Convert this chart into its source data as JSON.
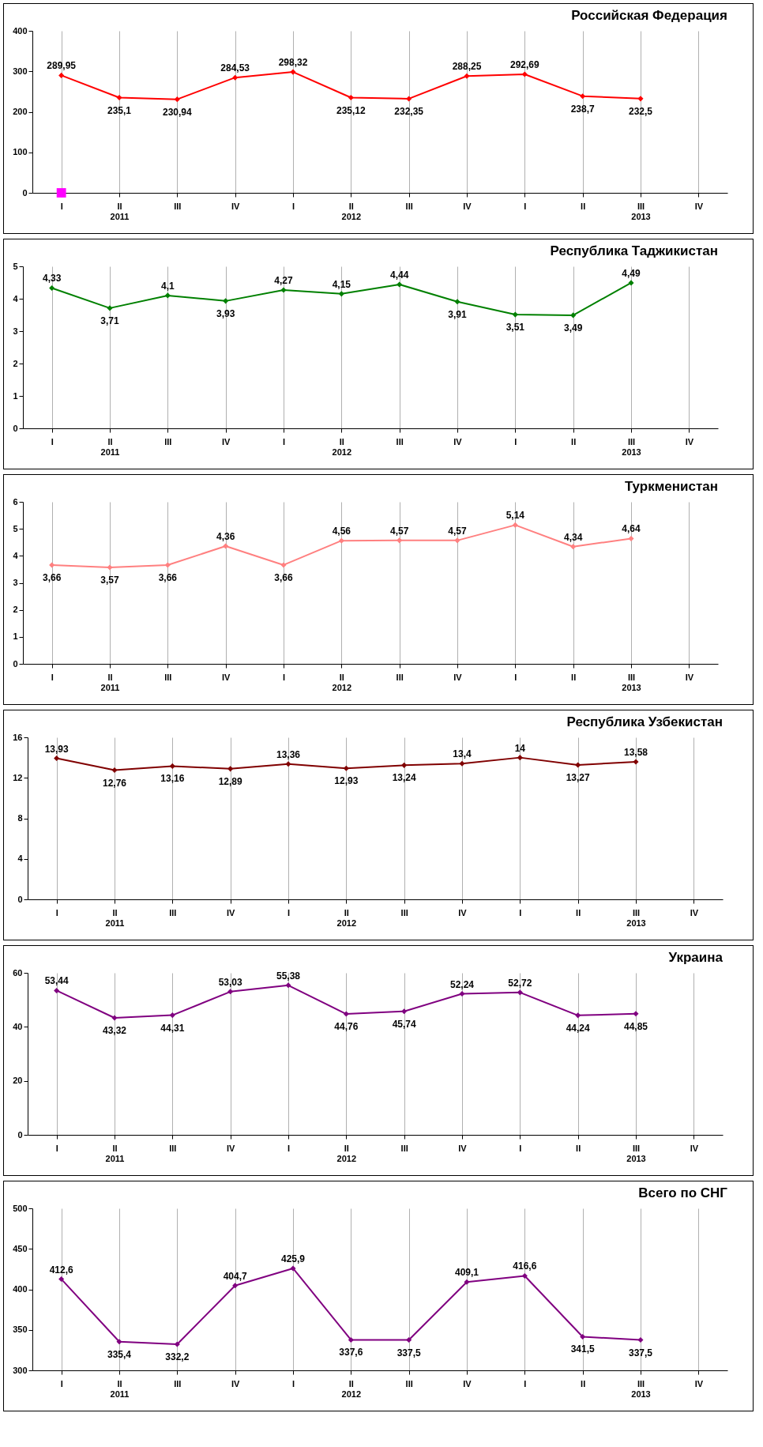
{
  "chart_data": [
    {
      "type": "line",
      "title": "Российская Федерация",
      "categories": [
        "I",
        "II\n2011",
        "III",
        "IV",
        "I",
        "II\n2012",
        "III",
        "IV",
        "I",
        "II",
        "III\n2013",
        "IV"
      ],
      "ylim": [
        0,
        400
      ],
      "yticks": [
        0,
        100,
        200,
        300,
        400
      ],
      "grid": "x",
      "marker": "diamond",
      "series": [
        {
          "color": "#ff0000",
          "values": [
            289.95,
            235.1,
            230.94,
            284.53,
            298.32,
            235.12,
            232.35,
            288.25,
            292.69,
            238.7,
            232.5,
            null
          ],
          "value_labels": [
            "289,95",
            "235,1",
            "230,94",
            "284,53",
            "298,32",
            "235,12",
            "232,35",
            "288,25",
            "292,69",
            "238,7",
            "232,5",
            null
          ]
        },
        {
          "type": "scatter",
          "marker": "square",
          "color": "#ff00ff",
          "values": [
            0,
            null,
            null,
            null,
            null,
            null,
            null,
            null,
            null,
            null,
            null,
            null
          ]
        }
      ]
    },
    {
      "type": "line",
      "title": "Республика Таджикистан",
      "categories": [
        "I",
        "II\n2011",
        "III",
        "IV",
        "I",
        "II\n2012",
        "III",
        "IV",
        "I",
        "II",
        "III\n2013",
        "IV"
      ],
      "ylim": [
        0,
        5
      ],
      "yticks": [
        0,
        1,
        2,
        3,
        4,
        5
      ],
      "grid": "x",
      "marker": "diamond",
      "series": [
        {
          "color": "#008000",
          "values": [
            4.33,
            3.71,
            4.1,
            3.93,
            4.27,
            4.15,
            4.44,
            3.91,
            3.51,
            3.49,
            4.49,
            null
          ],
          "value_labels": [
            "4,33",
            "3,71",
            "4,1",
            "3,93",
            "4,27",
            "4,15",
            "4,44",
            "3,91",
            "3,51",
            "3,49",
            "4,49",
            null
          ]
        }
      ]
    },
    {
      "type": "line",
      "title": "Туркменистан",
      "categories": [
        "I",
        "II\n2011",
        "III",
        "IV",
        "I",
        "II\n2012",
        "III",
        "IV",
        "I",
        "II",
        "III\n2013",
        "IV"
      ],
      "ylim": [
        0,
        6
      ],
      "yticks": [
        0,
        1,
        2,
        3,
        4,
        5,
        6
      ],
      "grid": "x",
      "marker": "diamond",
      "series": [
        {
          "color": "#ff8080",
          "values": [
            3.66,
            3.57,
            3.66,
            4.36,
            3.66,
            4.56,
            4.57,
            4.57,
            5.14,
            4.34,
            4.64,
            null
          ],
          "value_labels": [
            "3,66",
            "3,57",
            "3,66",
            "4,36",
            "3,66",
            "4,56",
            "4,57",
            "4,57",
            "5,14",
            "4,34",
            "4,64",
            null
          ]
        }
      ]
    },
    {
      "type": "line",
      "title": "Республика Узбекистан",
      "categories": [
        "I",
        "II\n2011",
        "III",
        "IV",
        "I",
        "II\n2012",
        "III",
        "IV",
        "I",
        "II",
        "III\n2013",
        "IV"
      ],
      "ylim": [
        0,
        16
      ],
      "yticks": [
        0,
        4,
        8,
        12,
        16
      ],
      "grid": "x",
      "marker": "diamond",
      "series": [
        {
          "color": "#800000",
          "values": [
            13.93,
            12.76,
            13.16,
            12.89,
            13.36,
            12.93,
            13.24,
            13.4,
            14,
            13.27,
            13.58,
            null
          ],
          "value_labels": [
            "13,93",
            "12,76",
            "13,16",
            "12,89",
            "13,36",
            "12,93",
            "13,24",
            "13,4",
            "14",
            "13,27",
            "13,58",
            null
          ]
        }
      ]
    },
    {
      "type": "line",
      "title": "Украина",
      "categories": [
        "I",
        "II\n2011",
        "III",
        "IV",
        "I",
        "II\n2012",
        "III",
        "IV",
        "I",
        "II",
        "III\n2013",
        "IV"
      ],
      "ylim": [
        0,
        60
      ],
      "yticks": [
        0,
        20,
        40,
        60
      ],
      "grid": "x",
      "marker": "diamond",
      "series": [
        {
          "color": "#800080",
          "values": [
            53.44,
            43.32,
            44.31,
            53.03,
            55.38,
            44.76,
            45.74,
            52.24,
            52.72,
            44.24,
            44.85,
            null
          ],
          "value_labels": [
            "53,44",
            "43,32",
            "44,31",
            "53,03",
            "55,38",
            "44,76",
            "45,74",
            "52,24",
            "52,72",
            "44,24",
            "44,85",
            null
          ]
        }
      ]
    },
    {
      "type": "line",
      "title": "Всего по СНГ",
      "categories": [
        "I",
        "II\n2011",
        "III",
        "IV",
        "I",
        "II\n2012",
        "III",
        "IV",
        "I",
        "II",
        "III\n2013",
        "IV"
      ],
      "ylim": [
        300,
        500
      ],
      "yticks": [
        300,
        350,
        400,
        450,
        500
      ],
      "grid": "x",
      "marker": "diamond",
      "series": [
        {
          "color": "#800080",
          "values": [
            412.6,
            335.4,
            332.2,
            404.7,
            425.9,
            337.6,
            337.5,
            409.1,
            416.6,
            341.5,
            337.5,
            null
          ],
          "value_labels": [
            "412,6",
            "335,4",
            "332,2",
            "404,7",
            "425,9",
            "337,6",
            "337,5",
            "409,1",
            "416,6",
            "341,5",
            "337,5",
            null
          ]
        }
      ]
    }
  ]
}
